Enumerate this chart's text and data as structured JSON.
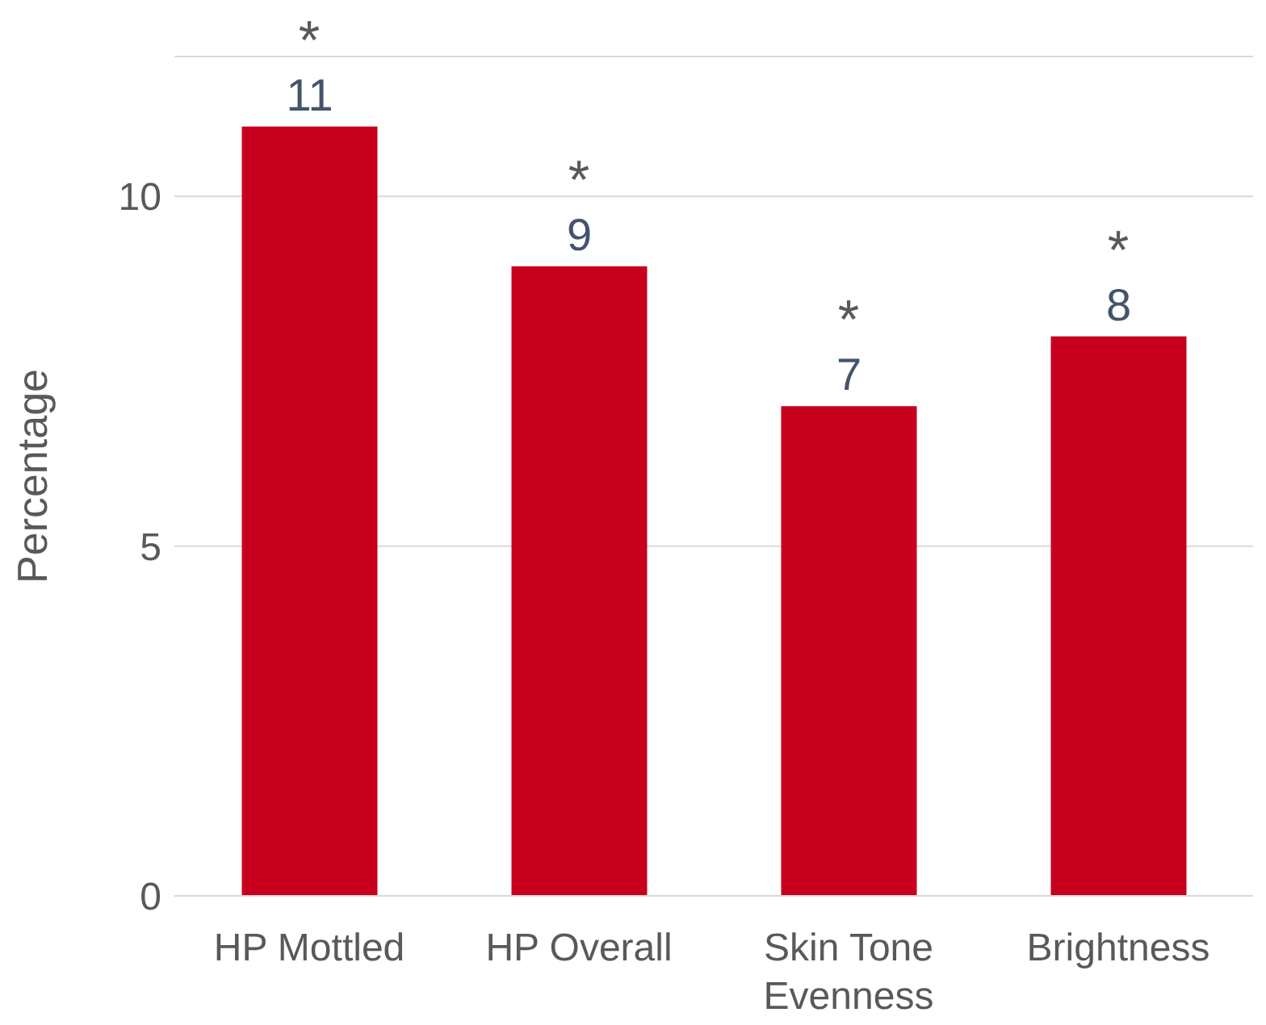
{
  "chart_data": {
    "type": "bar",
    "ylabel": "Percentage",
    "categories": [
      "HP Mottled",
      "HP Overall",
      "Skin Tone Evenness",
      "Brightness"
    ],
    "values": [
      11,
      9,
      7,
      8
    ],
    "color": "#c8001e",
    "ylim": [
      0,
      12
    ],
    "yticks": [
      0,
      5,
      10
    ],
    "grid": "y",
    "data_labels": true,
    "legend": false,
    "annotations": [
      {
        "text": "*",
        "x": "HP Mottled",
        "y": 11
      },
      {
        "text": "*",
        "x": "HP Overall",
        "y": 9
      },
      {
        "text": "*",
        "x": "Skin Tone Evenness",
        "y": 7
      },
      {
        "text": "*",
        "x": "Brightness",
        "y": 8
      }
    ]
  }
}
